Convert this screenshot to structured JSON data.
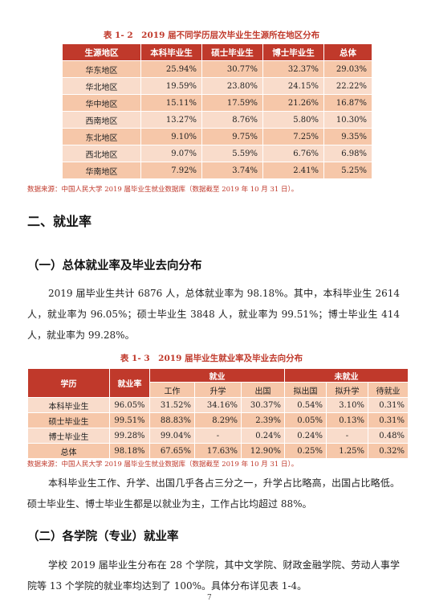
{
  "table1": {
    "caption": "表 1- 2　2019 届不同学历层次毕业生生源所在地区分布",
    "headers": [
      "生源地区",
      "本科毕业生",
      "硕士毕业生",
      "博士毕业生",
      "总体"
    ],
    "rows": [
      [
        "华东地区",
        "25.94%",
        "30.77%",
        "32.37%",
        "29.03%"
      ],
      [
        "华北地区",
        "19.59%",
        "23.80%",
        "24.15%",
        "22.22%"
      ],
      [
        "华中地区",
        "15.11%",
        "17.59%",
        "21.26%",
        "16.87%"
      ],
      [
        "西南地区",
        "13.27%",
        "8.76%",
        "5.80%",
        "10.30%"
      ],
      [
        "东北地区",
        "9.10%",
        "9.75%",
        "7.25%",
        "9.35%"
      ],
      [
        "西北地区",
        "9.07%",
        "5.59%",
        "6.76%",
        "6.98%"
      ],
      [
        "华南地区",
        "7.92%",
        "3.74%",
        "2.41%",
        "5.25%"
      ]
    ],
    "source": "数据来源：中国人民大学 2019 届毕业生就业数据库（数据截至 2019 年 10 月 31 日）。"
  },
  "section2_title": "二、就业率",
  "subsection1_title": "（一）总体就业率及毕业去向分布",
  "para1": "2019 届毕业生共计 6876 人，总体就业率为 98.18%。其中，本科毕业生 2614 人，就业率为 96.05%；硕士毕业生 3848 人，就业率为 99.51%；博士毕业生 414 人，就业率为 99.28%。",
  "table2": {
    "caption": "表 1- 3　2019 届毕业生就业率及毕业去向分布",
    "col_degree": "学历",
    "col_rate": "就业率",
    "group_employed": "就业",
    "group_unemployed": "未就业",
    "sub_headers": [
      "工作",
      "升学",
      "出国",
      "拟出国",
      "拟升学",
      "待就业"
    ],
    "rows": [
      [
        "本科毕业生",
        "96.05%",
        "31.52%",
        "34.16%",
        "30.37%",
        "0.54%",
        "3.10%",
        "0.31%"
      ],
      [
        "硕士毕业生",
        "99.51%",
        "88.83%",
        "8.29%",
        "2.39%",
        "0.05%",
        "0.13%",
        "0.31%"
      ],
      [
        "博士毕业生",
        "99.28%",
        "99.04%",
        "-",
        "0.24%",
        "0.24%",
        "-",
        "0.48%"
      ],
      [
        "总体",
        "98.18%",
        "67.65%",
        "17.63%",
        "12.90%",
        "0.25%",
        "1.25%",
        "0.32%"
      ]
    ],
    "source": "数据来源：中国人民大学 2019 届毕业生就业数据库（数据截至 2019 年 10 月 31 日）。"
  },
  "para2": "本科毕业生工作、升学、出国几乎各占三分之一，升学占比略高，出国占比略低。硕士毕业生、博士毕业生都是以就业为主，工作占比均超过 88%。",
  "subsection2_title": "（二）各学院（专业）就业率",
  "para3": "学校 2019 届毕业生分布在 28 个学院，其中文学院、财政金融学院、劳动人事学院等 13 个学院的就业率均达到了 100%。具体分布详见表 1-4。",
  "page_number": "7",
  "colors": {
    "accent": "#c0392b",
    "row_dark": "#f6c7a9",
    "row_light": "#f9dccb"
  }
}
